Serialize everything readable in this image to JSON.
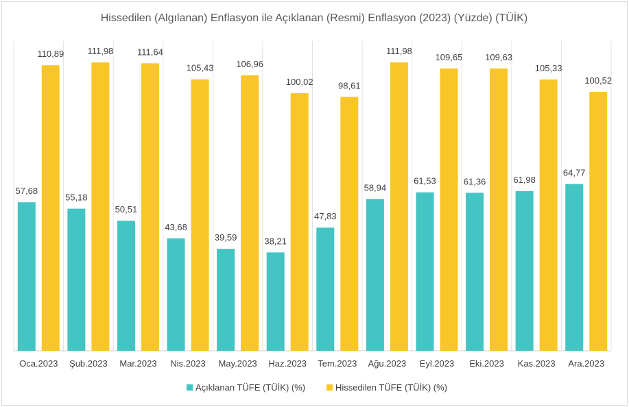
{
  "chart_data": {
    "type": "bar",
    "title": "Hissedilen (Algılanan) Enflasyon ile Açıklanan (Resmi) Enflasyon (2023) (Yüzde) (TÜİK)",
    "categories": [
      "Oca.2023",
      "Şub.2023",
      "Mar.2023",
      "Nis.2023",
      "May.2023",
      "Haz.2023",
      "Tem.2023",
      "Ağu.2023",
      "Eyl.2023",
      "Eki.2023",
      "Kas.2023",
      "Ara.2023"
    ],
    "series": [
      {
        "name": "Açıklanan TÜFE (TÜİK) (%)",
        "color": "#45c4c4",
        "values": [
          57.68,
          55.18,
          50.51,
          43.68,
          39.59,
          38.21,
          47.83,
          58.94,
          61.53,
          61.36,
          61.98,
          64.77
        ],
        "labels": [
          "57,68",
          "55,18",
          "50,51",
          "43,68",
          "39,59",
          "38,21",
          "47,83",
          "58,94",
          "61,53",
          "61,36",
          "61,98",
          "64,77"
        ]
      },
      {
        "name": "Hissedilen TÜFE (TÜİK) (%)",
        "color": "#f9c62a",
        "values": [
          110.89,
          111.98,
          111.64,
          105.43,
          106.96,
          100.02,
          98.61,
          111.98,
          109.65,
          109.63,
          105.33,
          100.52
        ],
        "labels": [
          "110,89",
          "111,98",
          "111,64",
          "105,43",
          "106,96",
          "100,02",
          "98,61",
          "111,98",
          "109,65",
          "109,63",
          "105,33",
          "100,52"
        ]
      }
    ],
    "ylim": [
      0,
      112
    ],
    "grid": true,
    "legend_position": "bottom"
  }
}
